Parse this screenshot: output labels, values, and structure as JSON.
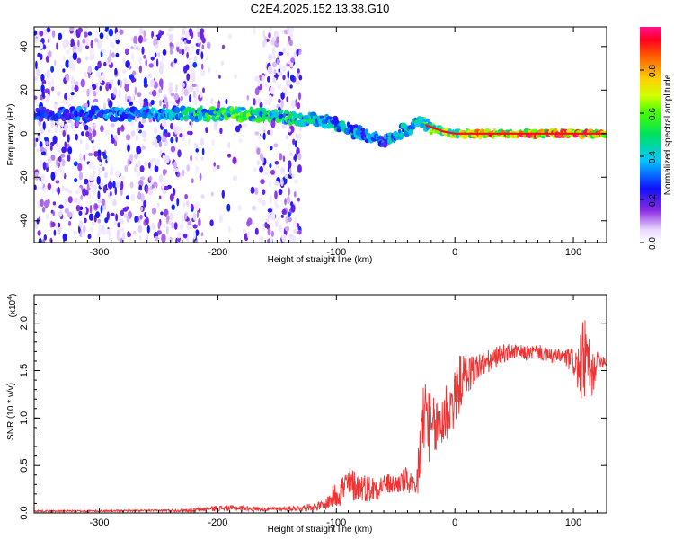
{
  "title": "C2E4.2025.152.13.38.G10",
  "colorbar": {
    "label": "Normalized spectral amplitude",
    "ticks": [
      "0.0",
      "0.2",
      "0.4",
      "0.6",
      "0.8"
    ],
    "tick_values": [
      0.0,
      0.2,
      0.4,
      0.6,
      0.8
    ]
  },
  "chart_data": [
    {
      "type": "heatmap",
      "title": "C2E4.2025.152.13.38.G10",
      "xlabel": "Height of straight line (km)",
      "ylabel": "Frequency (Hz)",
      "xlim": [
        -355,
        128
      ],
      "ylim": [
        -50,
        49
      ],
      "x_ticks": [
        -300,
        -200,
        -100,
        0,
        100
      ],
      "x_tick_labels": [
        "-300",
        "-200",
        "-100",
        "0",
        "100"
      ],
      "y_ticks": [
        -40,
        -20,
        0,
        20,
        40
      ],
      "y_tick_labels": [
        "-40",
        "-20",
        "0",
        "20",
        "40"
      ],
      "ridge": {
        "x": [
          -355,
          -300,
          -250,
          -210,
          -180,
          -150,
          -130,
          -110,
          -100,
          -90,
          -80,
          -70,
          -60,
          -50,
          -40,
          -30,
          -20,
          -10,
          0,
          20,
          50,
          100,
          128
        ],
        "y": [
          9,
          9,
          9,
          9,
          9,
          8,
          7,
          6,
          4,
          2,
          0,
          -2,
          -4,
          0,
          2,
          5,
          3,
          1,
          0,
          0,
          0,
          0,
          0
        ],
        "amplitude": [
          0.3,
          0.35,
          0.4,
          0.55,
          0.6,
          0.55,
          0.5,
          0.45,
          0.45,
          0.45,
          0.4,
          0.4,
          0.35,
          0.45,
          0.5,
          0.55,
          0.6,
          0.65,
          0.75,
          0.85,
          0.92,
          0.95,
          0.95
        ]
      },
      "noise_region": {
        "x_from": -355,
        "x_to": -130,
        "amplitude_max": 0.25
      }
    },
    {
      "type": "line",
      "xlabel": "Height of straight line (km)",
      "ylabel": "SNR (10 * v/v)",
      "y_multiplier_label": "(x10",
      "y_multiplier_exp": "4",
      "xlim": [
        -355,
        128
      ],
      "ylim": [
        0,
        2.3
      ],
      "x_ticks": [
        -300,
        -200,
        -100,
        0,
        100
      ],
      "x_tick_labels": [
        "-300",
        "-200",
        "-100",
        "0",
        "100"
      ],
      "y_ticks": [
        0.0,
        0.5,
        1.0,
        1.5,
        2.0
      ],
      "y_tick_labels": [
        "0.0",
        "0.5",
        "1.0",
        "1.5",
        "2.0"
      ],
      "series": [
        {
          "color": "#ee3333",
          "x": [
            -355,
            -300,
            -250,
            -220,
            -200,
            -180,
            -160,
            -130,
            -110,
            -100,
            -90,
            -80,
            -70,
            -60,
            -50,
            -40,
            -33,
            -30,
            -25,
            -20,
            -15,
            -10,
            -5,
            0,
            5,
            10,
            20,
            30,
            40,
            50,
            60,
            70,
            80,
            90,
            100,
            105,
            110,
            115,
            120,
            128
          ],
          "y": [
            0.02,
            0.02,
            0.025,
            0.03,
            0.05,
            0.05,
            0.04,
            0.05,
            0.08,
            0.2,
            0.3,
            0.28,
            0.25,
            0.3,
            0.3,
            0.35,
            0.2,
            0.6,
            1.1,
            0.85,
            0.9,
            1.0,
            1.1,
            1.2,
            1.4,
            1.45,
            1.55,
            1.6,
            1.68,
            1.7,
            1.68,
            1.7,
            1.65,
            1.65,
            1.6,
            1.5,
            1.65,
            1.4,
            1.62,
            1.6
          ],
          "noise_amplitude": [
            0.01,
            0.01,
            0.01,
            0.02,
            0.03,
            0.03,
            0.02,
            0.03,
            0.05,
            0.15,
            0.2,
            0.15,
            0.15,
            0.12,
            0.1,
            0.15,
            0.12,
            0.45,
            0.5,
            0.35,
            0.35,
            0.4,
            0.35,
            0.3,
            0.3,
            0.22,
            0.15,
            0.12,
            0.1,
            0.08,
            0.08,
            0.08,
            0.08,
            0.08,
            0.15,
            0.3,
            0.5,
            0.3,
            0.08,
            0.06
          ]
        }
      ]
    }
  ]
}
